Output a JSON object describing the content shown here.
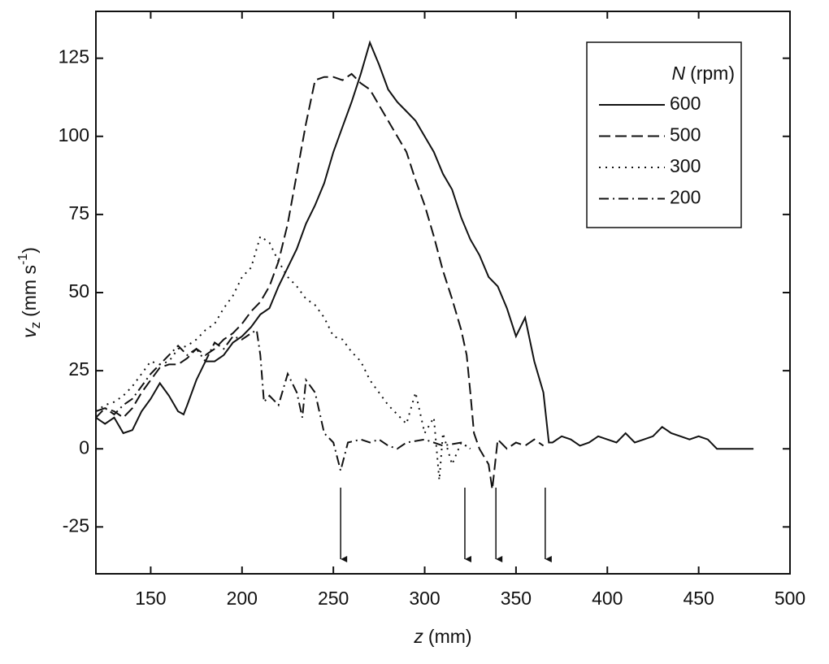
{
  "chart_data": {
    "type": "line",
    "x_label": {
      "symbol": "z",
      "unit": "(mm)"
    },
    "y_label": {
      "symbol": "v",
      "subscript": "z",
      "unit": "(mm s",
      "exponent": "-1",
      "close": ")"
    },
    "legend_title": {
      "symbol": "N",
      "unit": "(rpm)"
    },
    "legend": "upper right",
    "xlim": [
      120,
      500
    ],
    "ylim": [
      -40,
      140
    ],
    "xticks": [
      150,
      200,
      250,
      300,
      350,
      400,
      450,
      500
    ],
    "yticks": [
      -25,
      0,
      25,
      50,
      75,
      100,
      125
    ],
    "arrows": [
      254,
      322,
      339,
      366
    ],
    "series": [
      {
        "name": "600",
        "color": "#111111",
        "dash": [],
        "x": [
          120,
          125,
          130,
          135,
          140,
          145,
          150,
          155,
          160,
          165,
          168,
          170,
          175,
          180,
          185,
          190,
          195,
          200,
          205,
          210,
          215,
          220,
          225,
          230,
          235,
          240,
          245,
          250,
          255,
          260,
          265,
          270,
          275,
          280,
          285,
          290,
          295,
          300,
          305,
          310,
          315,
          320,
          325,
          330,
          335,
          340,
          345,
          350,
          355,
          360,
          365,
          368,
          370,
          375,
          380,
          385,
          390,
          395,
          400,
          405,
          410,
          415,
          420,
          425,
          430,
          435,
          440,
          445,
          450,
          455,
          460,
          470,
          480
        ],
        "values": [
          10,
          8,
          10,
          5,
          6,
          12,
          16,
          21,
          17,
          12,
          11,
          14,
          22,
          28,
          28,
          30,
          34,
          36,
          39,
          43,
          45,
          52,
          58,
          64,
          72,
          78,
          85,
          95,
          103,
          111,
          120,
          130,
          123,
          115,
          111,
          108,
          105,
          100,
          95,
          88,
          83,
          74,
          67,
          62,
          55,
          52,
          45,
          36,
          42,
          28,
          18,
          2,
          2,
          4,
          3,
          1,
          2,
          4,
          3,
          2,
          5,
          2,
          3,
          4,
          7,
          5,
          4,
          3,
          4,
          3,
          0,
          0,
          0
        ]
      },
      {
        "name": "500",
        "color": "#111111",
        "dash": [
          14,
          6
        ],
        "x": [
          120,
          125,
          130,
          135,
          140,
          145,
          150,
          155,
          160,
          165,
          170,
          175,
          180,
          185,
          190,
          195,
          200,
          205,
          210,
          215,
          220,
          225,
          230,
          235,
          240,
          245,
          250,
          255,
          260,
          265,
          270,
          275,
          280,
          285,
          290,
          295,
          300,
          305,
          310,
          315,
          320,
          323,
          325,
          327,
          330,
          335,
          337,
          340,
          345,
          350,
          355,
          360,
          365
        ],
        "values": [
          12,
          13,
          12,
          10,
          13,
          18,
          22,
          26,
          27,
          27,
          29,
          32,
          30,
          32,
          35,
          37,
          40,
          44,
          47,
          52,
          60,
          72,
          88,
          104,
          118,
          119,
          119,
          118,
          120,
          117,
          115,
          110,
          105,
          100,
          95,
          86,
          78,
          68,
          57,
          48,
          38,
          30,
          18,
          5,
          0,
          -5,
          -13,
          3,
          0,
          2,
          1,
          3,
          1
        ]
      },
      {
        "name": "300",
        "color": "#111111",
        "dash": [
          2,
          6
        ],
        "x": [
          120,
          125,
          130,
          135,
          140,
          145,
          150,
          155,
          160,
          165,
          170,
          175,
          180,
          185,
          190,
          195,
          200,
          205,
          210,
          215,
          220,
          225,
          230,
          235,
          240,
          245,
          250,
          255,
          260,
          265,
          270,
          275,
          280,
          285,
          290,
          295,
          300,
          305,
          308,
          310,
          315,
          320,
          325
        ],
        "values": [
          12,
          14,
          15,
          17,
          20,
          24,
          28,
          27,
          28,
          32,
          33,
          35,
          38,
          40,
          45,
          49,
          55,
          58,
          68,
          66,
          60,
          55,
          52,
          48,
          46,
          42,
          36,
          35,
          31,
          28,
          22,
          18,
          14,
          11,
          8,
          18,
          5,
          10,
          -10,
          5,
          -5,
          2,
          0
        ]
      },
      {
        "name": "200",
        "color": "#111111",
        "dash": [
          12,
          5,
          2,
          5
        ],
        "x": [
          120,
          125,
          130,
          135,
          140,
          145,
          150,
          155,
          160,
          165,
          170,
          175,
          180,
          185,
          190,
          195,
          200,
          205,
          208,
          210,
          212,
          215,
          220,
          225,
          230,
          233,
          235,
          240,
          245,
          250,
          254,
          258,
          265,
          270,
          275,
          280,
          285,
          290,
          300,
          310,
          320,
          325
        ],
        "values": [
          10,
          13,
          11,
          14,
          16,
          20,
          24,
          27,
          30,
          33,
          30,
          32,
          28,
          34,
          32,
          36,
          35,
          37,
          38,
          30,
          15,
          17,
          14,
          24,
          18,
          10,
          22,
          18,
          5,
          2,
          -7,
          2,
          3,
          2,
          3,
          1,
          0,
          2,
          3,
          1,
          2,
          0
        ]
      }
    ]
  }
}
